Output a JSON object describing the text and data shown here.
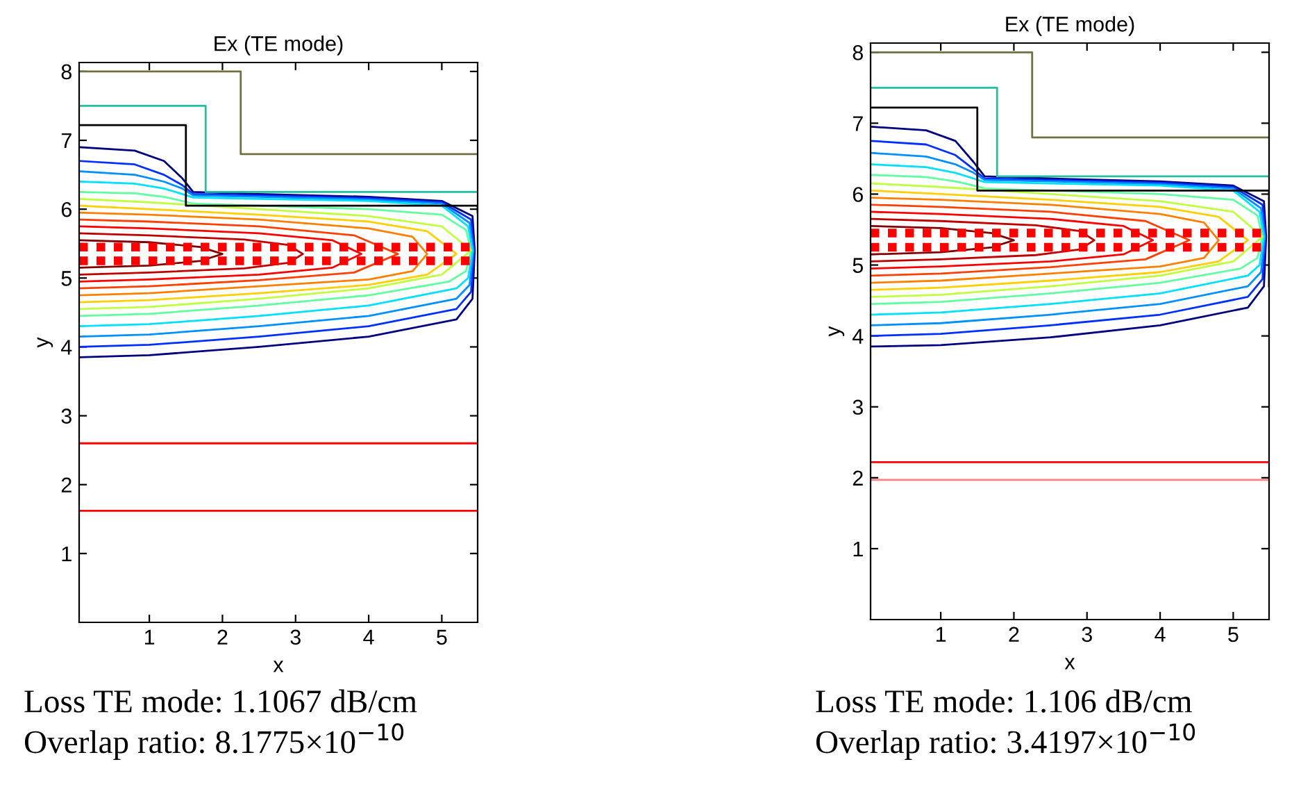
{
  "chart_data": [
    {
      "type": "line",
      "title": "Ex (TE mode)",
      "xlabel": "x",
      "ylabel": "y",
      "xlim": [
        0.04,
        5.49
      ],
      "ylim": [
        0,
        8.13
      ],
      "xticks": [
        1,
        2,
        3,
        4,
        5
      ],
      "yticks": [
        1,
        2,
        3,
        4,
        5,
        6,
        7,
        8
      ],
      "grid": false,
      "marker": "none",
      "annotations": [
        "Loss TE mode: 1.1067 dB/cm",
        "Overlap ratio: 8.1775×10$^{−10}$"
      ],
      "series": [
        {
          "color": "#000080",
          "x": [
            0.05,
            0.8,
            1.2,
            1.45,
            1.6,
            2.5,
            4.0,
            5.0,
            5.42,
            5.45,
            5.42,
            5.2,
            4.0,
            2.5,
            1.0,
            0.05
          ],
          "values": [
            6.9,
            6.85,
            6.7,
            6.45,
            6.25,
            6.22,
            6.18,
            6.12,
            5.9,
            5.4,
            4.7,
            4.4,
            4.15,
            4.0,
            3.88,
            3.85
          ]
        },
        {
          "color": "#0030ff",
          "x": [
            0.05,
            0.8,
            1.2,
            1.45,
            1.6,
            2.5,
            4.0,
            5.0,
            5.4,
            5.44,
            5.4,
            5.2,
            4.0,
            2.5,
            1.0,
            0.05
          ],
          "values": [
            6.7,
            6.65,
            6.5,
            6.35,
            6.22,
            6.2,
            6.16,
            6.1,
            5.85,
            5.4,
            4.8,
            4.55,
            4.3,
            4.15,
            4.03,
            4.0
          ]
        },
        {
          "color": "#0090ff",
          "x": [
            0.05,
            0.8,
            1.2,
            1.45,
            1.6,
            2.5,
            4.0,
            5.0,
            5.38,
            5.43,
            5.38,
            5.2,
            4.0,
            2.5,
            1.0,
            0.05
          ],
          "values": [
            6.55,
            6.5,
            6.4,
            6.3,
            6.2,
            6.18,
            6.14,
            6.08,
            5.8,
            5.4,
            4.9,
            4.7,
            4.45,
            4.3,
            4.18,
            4.15
          ]
        },
        {
          "color": "#00e0ff",
          "x": [
            0.05,
            0.8,
            1.2,
            1.45,
            1.6,
            2.5,
            4.0,
            5.0,
            5.36,
            5.42,
            5.36,
            5.2,
            4.0,
            2.5,
            1.0,
            0.05
          ],
          "values": [
            6.4,
            6.37,
            6.3,
            6.22,
            6.17,
            6.15,
            6.12,
            6.05,
            5.75,
            5.4,
            5.0,
            4.85,
            4.6,
            4.45,
            4.33,
            4.3
          ]
        },
        {
          "color": "#60ffa0",
          "x": [
            0.05,
            0.8,
            1.2,
            1.45,
            1.6,
            2.5,
            4.0,
            5.0,
            5.33,
            5.4,
            5.33,
            5.1,
            4.0,
            2.5,
            1.0,
            0.05
          ],
          "values": [
            6.25,
            6.23,
            6.18,
            6.12,
            6.08,
            6.05,
            6.0,
            5.92,
            5.7,
            5.4,
            5.1,
            4.95,
            4.75,
            4.6,
            4.48,
            4.45
          ]
        },
        {
          "color": "#c0ff40",
          "x": [
            0.05,
            1.0,
            2.5,
            4.0,
            5.0,
            5.4,
            5.0,
            4.0,
            2.5,
            1.0,
            0.05
          ],
          "values": [
            6.15,
            6.1,
            6.0,
            5.9,
            5.75,
            5.4,
            5.05,
            4.85,
            4.7,
            4.58,
            4.55
          ]
        },
        {
          "color": "#ffd000",
          "x": [
            0.05,
            1.0,
            2.5,
            4.0,
            4.8,
            5.2,
            4.8,
            4.0,
            2.5,
            1.0,
            0.05
          ],
          "values": [
            6.05,
            6.0,
            5.92,
            5.82,
            5.68,
            5.35,
            5.05,
            4.9,
            4.78,
            4.68,
            4.65
          ]
        },
        {
          "color": "#ff8000",
          "x": [
            0.05,
            1.0,
            2.5,
            4.0,
            4.6,
            4.8,
            4.6,
            4.0,
            2.5,
            1.0,
            0.05
          ],
          "values": [
            5.95,
            5.92,
            5.85,
            5.72,
            5.6,
            5.35,
            5.1,
            4.98,
            4.88,
            4.78,
            4.75
          ]
        },
        {
          "color": "#ff4000",
          "x": [
            0.05,
            1.0,
            2.5,
            3.8,
            4.4,
            3.8,
            2.5,
            1.0,
            0.05
          ],
          "values": [
            5.85,
            5.82,
            5.75,
            5.62,
            5.35,
            5.08,
            4.97,
            4.88,
            4.85
          ]
        },
        {
          "color": "#ff0000",
          "x": [
            0.05,
            1.0,
            2.5,
            3.5,
            3.9,
            3.5,
            2.5,
            1.0,
            0.05
          ],
          "values": [
            5.75,
            5.72,
            5.65,
            5.55,
            5.35,
            5.15,
            5.05,
            4.98,
            4.95
          ]
        },
        {
          "color": "#c00000",
          "x": [
            0.05,
            1.0,
            2.3,
            2.9,
            3.1,
            2.9,
            2.3,
            1.0,
            0.05
          ],
          "values": [
            5.65,
            5.62,
            5.56,
            5.48,
            5.35,
            5.22,
            5.14,
            5.08,
            5.05
          ]
        },
        {
          "color": "#800000",
          "x": [
            0.05,
            1.0,
            1.7,
            2.0,
            1.7,
            1.0,
            0.05
          ],
          "values": [
            5.55,
            5.52,
            5.45,
            5.35,
            5.25,
            5.18,
            5.15
          ]
        },
        {
          "color": "#ff0000",
          "line_style": "dotted",
          "x": [
            0.04,
            5.49
          ],
          "values": [
            5.45,
            5.45
          ]
        },
        {
          "color": "#ff0000",
          "line_style": "dotted",
          "x": [
            0.04,
            5.49
          ],
          "values": [
            5.25,
            5.25
          ]
        },
        {
          "color": "#000000",
          "x": [
            0.04,
            1.5,
            1.5,
            5.49,
            5.49
          ],
          "values": [
            7.22,
            7.22,
            6.05,
            6.05,
            5.95
          ]
        },
        {
          "color": "#20c0a0",
          "x": [
            0.04,
            1.77,
            1.77,
            5.49
          ],
          "values": [
            7.5,
            7.5,
            6.25,
            6.25
          ]
        },
        {
          "color": "#707040",
          "x": [
            0.04,
            2.25,
            2.25,
            5.49
          ],
          "values": [
            8.0,
            8.0,
            6.8,
            6.8
          ]
        },
        {
          "color": "#ff0000",
          "x": [
            0.04,
            5.49
          ],
          "values": [
            2.6,
            2.6
          ]
        },
        {
          "color": "#ff0000",
          "x": [
            0.04,
            5.49
          ],
          "values": [
            1.62,
            1.62
          ]
        }
      ]
    },
    {
      "type": "line",
      "title": "Ex (TE mode)",
      "xlabel": "x",
      "ylabel": "y",
      "xlim": [
        0.04,
        5.49
      ],
      "ylim": [
        0,
        8.13
      ],
      "xticks": [
        1,
        2,
        3,
        4,
        5
      ],
      "yticks": [
        1,
        2,
        3,
        4,
        5,
        6,
        7,
        8
      ],
      "grid": false,
      "marker": "none",
      "annotations": [
        "Loss TE mode: 1.106 dB/cm",
        "Overlap ratio: 3.4197×10$^{−10}$"
      ],
      "series": [
        {
          "color": "#000080",
          "x": [
            0.05,
            0.8,
            1.2,
            1.45,
            1.6,
            2.5,
            4.0,
            5.0,
            5.42,
            5.45,
            5.42,
            5.2,
            4.0,
            2.5,
            1.0,
            0.05
          ],
          "values": [
            6.95,
            6.9,
            6.75,
            6.45,
            6.25,
            6.22,
            6.18,
            6.12,
            5.9,
            5.4,
            4.7,
            4.4,
            4.15,
            3.98,
            3.87,
            3.85
          ]
        },
        {
          "color": "#0030ff",
          "x": [
            0.05,
            0.8,
            1.2,
            1.45,
            1.6,
            2.5,
            4.0,
            5.0,
            5.4,
            5.44,
            5.4,
            5.2,
            4.0,
            2.5,
            1.0,
            0.05
          ],
          "values": [
            6.75,
            6.7,
            6.55,
            6.35,
            6.22,
            6.2,
            6.16,
            6.1,
            5.85,
            5.4,
            4.8,
            4.55,
            4.3,
            4.15,
            4.03,
            4.0
          ]
        },
        {
          "color": "#0090ff",
          "x": [
            0.05,
            0.8,
            1.2,
            1.45,
            1.6,
            2.5,
            4.0,
            5.0,
            5.38,
            5.43,
            5.38,
            5.2,
            4.0,
            2.5,
            1.0,
            0.05
          ],
          "values": [
            6.58,
            6.53,
            6.42,
            6.3,
            6.2,
            6.18,
            6.14,
            6.08,
            5.8,
            5.4,
            4.9,
            4.7,
            4.45,
            4.3,
            4.18,
            4.15
          ]
        },
        {
          "color": "#00e0ff",
          "x": [
            0.05,
            0.8,
            1.2,
            1.45,
            1.6,
            2.5,
            4.0,
            5.0,
            5.36,
            5.42,
            5.36,
            5.2,
            4.0,
            2.5,
            1.0,
            0.05
          ],
          "values": [
            6.42,
            6.38,
            6.3,
            6.22,
            6.17,
            6.15,
            6.12,
            6.05,
            5.75,
            5.4,
            5.0,
            4.85,
            4.6,
            4.45,
            4.33,
            4.3
          ]
        },
        {
          "color": "#60ffa0",
          "x": [
            0.05,
            0.8,
            1.2,
            1.45,
            1.6,
            2.5,
            4.0,
            5.0,
            5.33,
            5.4,
            5.33,
            5.1,
            4.0,
            2.5,
            1.0,
            0.05
          ],
          "values": [
            6.27,
            6.24,
            6.18,
            6.12,
            6.08,
            6.05,
            6.0,
            5.92,
            5.7,
            5.4,
            5.1,
            4.95,
            4.75,
            4.6,
            4.48,
            4.45
          ]
        },
        {
          "color": "#c0ff40",
          "x": [
            0.05,
            1.0,
            2.5,
            4.0,
            5.0,
            5.4,
            5.0,
            4.0,
            2.5,
            1.0,
            0.05
          ],
          "values": [
            6.15,
            6.1,
            6.0,
            5.9,
            5.75,
            5.4,
            5.05,
            4.85,
            4.7,
            4.58,
            4.55
          ]
        },
        {
          "color": "#ffd000",
          "x": [
            0.05,
            1.0,
            2.5,
            4.0,
            4.8,
            5.2,
            4.8,
            4.0,
            2.5,
            1.0,
            0.05
          ],
          "values": [
            6.05,
            6.0,
            5.92,
            5.82,
            5.68,
            5.35,
            5.05,
            4.9,
            4.78,
            4.68,
            4.65
          ]
        },
        {
          "color": "#ff8000",
          "x": [
            0.05,
            1.0,
            2.5,
            4.0,
            4.6,
            4.8,
            4.6,
            4.0,
            2.5,
            1.0,
            0.05
          ],
          "values": [
            5.95,
            5.92,
            5.85,
            5.72,
            5.6,
            5.35,
            5.1,
            4.98,
            4.88,
            4.78,
            4.75
          ]
        },
        {
          "color": "#ff4000",
          "x": [
            0.05,
            1.0,
            2.5,
            3.8,
            4.4,
            3.8,
            2.5,
            1.0,
            0.05
          ],
          "values": [
            5.85,
            5.82,
            5.75,
            5.62,
            5.35,
            5.08,
            4.97,
            4.88,
            4.85
          ]
        },
        {
          "color": "#ff0000",
          "x": [
            0.05,
            1.0,
            2.5,
            3.5,
            3.9,
            3.5,
            2.5,
            1.0,
            0.05
          ],
          "values": [
            5.75,
            5.72,
            5.65,
            5.55,
            5.35,
            5.15,
            5.05,
            4.98,
            4.95
          ]
        },
        {
          "color": "#c00000",
          "x": [
            0.05,
            1.0,
            2.3,
            2.9,
            3.1,
            2.9,
            2.3,
            1.0,
            0.05
          ],
          "values": [
            5.65,
            5.62,
            5.56,
            5.48,
            5.35,
            5.22,
            5.14,
            5.08,
            5.05
          ]
        },
        {
          "color": "#800000",
          "x": [
            0.05,
            1.0,
            1.7,
            2.0,
            1.7,
            1.0,
            0.05
          ],
          "values": [
            5.55,
            5.52,
            5.45,
            5.35,
            5.25,
            5.18,
            5.15
          ]
        },
        {
          "color": "#ff0000",
          "line_style": "dotted",
          "x": [
            0.04,
            5.49
          ],
          "values": [
            5.45,
            5.45
          ]
        },
        {
          "color": "#ff0000",
          "line_style": "dotted",
          "x": [
            0.04,
            5.49
          ],
          "values": [
            5.25,
            5.25
          ]
        },
        {
          "color": "#000000",
          "x": [
            0.04,
            1.5,
            1.5,
            5.49,
            5.49
          ],
          "values": [
            7.22,
            7.22,
            6.05,
            6.05,
            4.7
          ]
        },
        {
          "color": "#20c0a0",
          "x": [
            0.04,
            1.77,
            1.77,
            5.49
          ],
          "values": [
            7.5,
            7.5,
            6.25,
            6.25
          ]
        },
        {
          "color": "#707040",
          "x": [
            0.04,
            2.25,
            2.25,
            5.49
          ],
          "values": [
            8.0,
            8.0,
            6.8,
            6.8
          ]
        },
        {
          "color": "#ff0000",
          "x": [
            0.04,
            5.49
          ],
          "values": [
            2.22,
            2.22
          ]
        },
        {
          "color": "#ff8080",
          "x": [
            0.04,
            5.49
          ],
          "values": [
            1.97,
            1.97
          ]
        }
      ]
    }
  ]
}
